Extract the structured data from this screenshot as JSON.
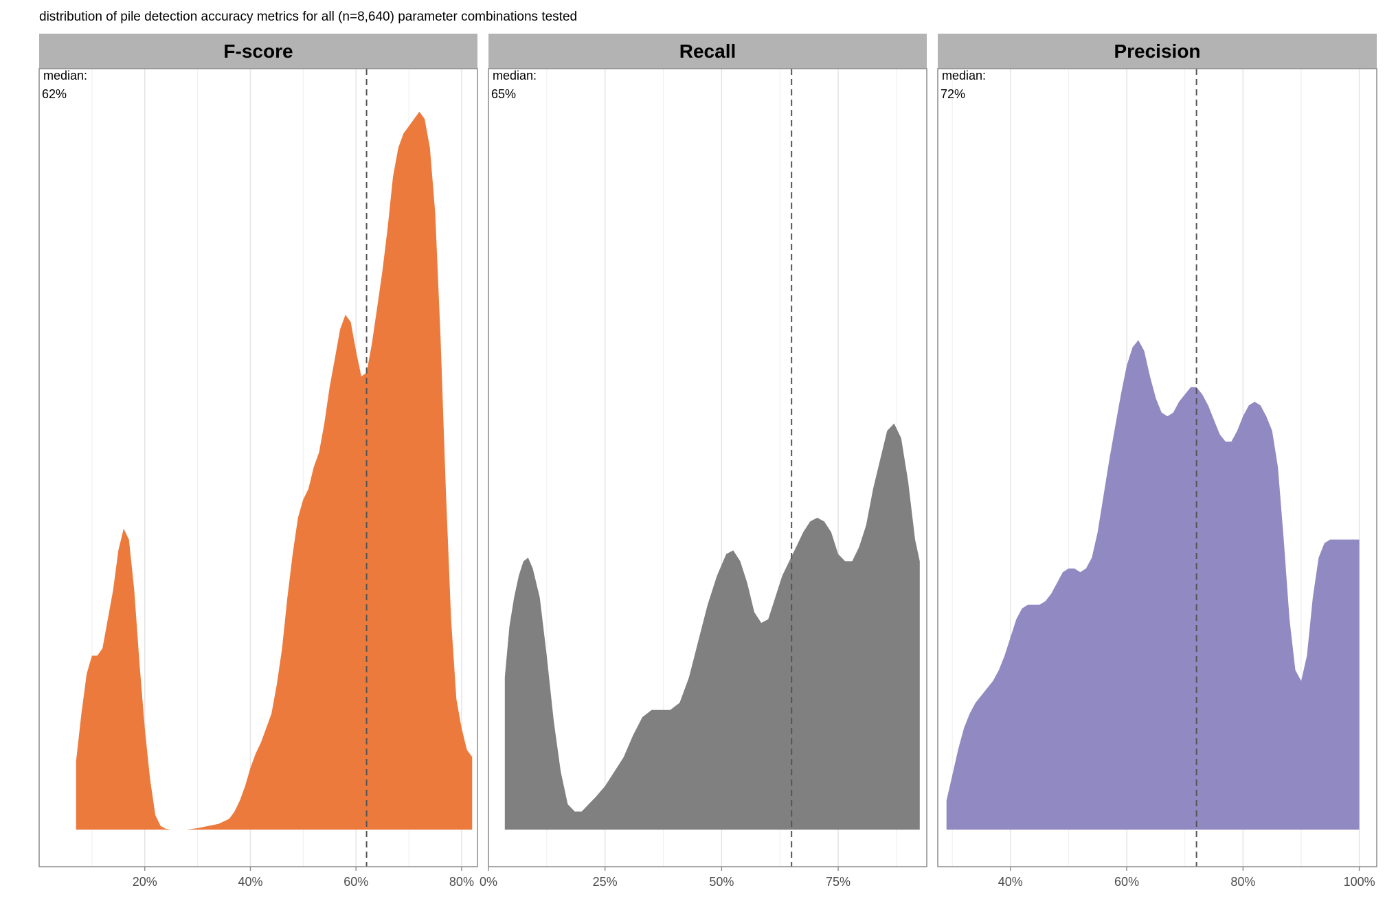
{
  "chart_data": {
    "type": "area",
    "title": "distribution of pile detection accuracy metrics for all (n=8,640) parameter combinations tested",
    "ylabel": "",
    "ylim": [
      0,
      1
    ],
    "grid": true,
    "facets": [
      {
        "name": "F-score",
        "color": "#ec7a3d",
        "xlim": [
          0.0,
          0.83
        ],
        "tick_values": [
          0.2,
          0.4,
          0.6,
          0.8
        ],
        "tick_labels": [
          "20%",
          "40%",
          "60%",
          "80%"
        ],
        "median": 0.62,
        "median_label": "median:",
        "median_value": "62%",
        "x": [
          0.07,
          0.08,
          0.09,
          0.1,
          0.11,
          0.12,
          0.13,
          0.14,
          0.15,
          0.16,
          0.17,
          0.18,
          0.19,
          0.2,
          0.21,
          0.22,
          0.23,
          0.24,
          0.25,
          0.26,
          0.28,
          0.3,
          0.32,
          0.34,
          0.36,
          0.37,
          0.38,
          0.39,
          0.4,
          0.41,
          0.42,
          0.43,
          0.44,
          0.45,
          0.46,
          0.47,
          0.48,
          0.49,
          0.5,
          0.51,
          0.52,
          0.53,
          0.54,
          0.55,
          0.56,
          0.57,
          0.58,
          0.59,
          0.6,
          0.61,
          0.62,
          0.63,
          0.64,
          0.65,
          0.66,
          0.67,
          0.68,
          0.69,
          0.7,
          0.71,
          0.72,
          0.73,
          0.74,
          0.75,
          0.76,
          0.77,
          0.78,
          0.79,
          0.8,
          0.81,
          0.82
        ],
        "y": [
          0.095,
          0.16,
          0.215,
          0.24,
          0.24,
          0.25,
          0.29,
          0.33,
          0.385,
          0.415,
          0.4,
          0.33,
          0.23,
          0.14,
          0.07,
          0.02,
          0.005,
          0.001,
          0.0,
          0.0,
          0.0,
          0.002,
          0.005,
          0.008,
          0.015,
          0.025,
          0.04,
          0.06,
          0.085,
          0.105,
          0.12,
          0.14,
          0.16,
          0.2,
          0.25,
          0.32,
          0.38,
          0.43,
          0.455,
          0.47,
          0.5,
          0.52,
          0.56,
          0.61,
          0.65,
          0.69,
          0.71,
          0.7,
          0.66,
          0.625,
          0.63,
          0.67,
          0.72,
          0.77,
          0.83,
          0.9,
          0.94,
          0.96,
          0.97,
          0.98,
          0.99,
          0.98,
          0.94,
          0.85,
          0.68,
          0.47,
          0.29,
          0.18,
          0.14,
          0.11,
          0.1
        ]
      },
      {
        "name": "Recall",
        "color": "#808080",
        "xlim": [
          0.0,
          0.94
        ],
        "tick_values": [
          0.0,
          0.25,
          0.5,
          0.75
        ],
        "tick_labels": [
          "0%",
          "25%",
          "50%",
          "75%"
        ],
        "median": 0.65,
        "median_label": "median:",
        "median_value": "65%",
        "x": [
          0.035,
          0.045,
          0.055,
          0.065,
          0.075,
          0.085,
          0.095,
          0.11,
          0.125,
          0.14,
          0.155,
          0.17,
          0.185,
          0.2,
          0.215,
          0.23,
          0.25,
          0.27,
          0.29,
          0.31,
          0.33,
          0.35,
          0.37,
          0.39,
          0.41,
          0.43,
          0.45,
          0.47,
          0.49,
          0.51,
          0.525,
          0.54,
          0.555,
          0.57,
          0.585,
          0.6,
          0.615,
          0.63,
          0.645,
          0.66,
          0.675,
          0.69,
          0.705,
          0.72,
          0.735,
          0.75,
          0.765,
          0.78,
          0.795,
          0.81,
          0.825,
          0.84,
          0.855,
          0.87,
          0.885,
          0.9,
          0.915,
          0.925
        ],
        "y": [
          0.21,
          0.28,
          0.32,
          0.35,
          0.37,
          0.375,
          0.36,
          0.32,
          0.24,
          0.15,
          0.08,
          0.035,
          0.025,
          0.025,
          0.035,
          0.045,
          0.06,
          0.08,
          0.1,
          0.13,
          0.155,
          0.165,
          0.165,
          0.165,
          0.175,
          0.21,
          0.26,
          0.31,
          0.35,
          0.38,
          0.385,
          0.37,
          0.34,
          0.3,
          0.285,
          0.29,
          0.32,
          0.35,
          0.37,
          0.39,
          0.41,
          0.425,
          0.43,
          0.425,
          0.41,
          0.38,
          0.37,
          0.37,
          0.39,
          0.42,
          0.47,
          0.51,
          0.55,
          0.56,
          0.54,
          0.48,
          0.4,
          0.37
        ]
      },
      {
        "name": "Precision",
        "color": "#9189c1",
        "xlim": [
          0.275,
          1.03
        ],
        "tick_values": [
          0.4,
          0.6,
          0.8,
          1.0
        ],
        "tick_labels": [
          "40%",
          "60%",
          "80%",
          "100%"
        ],
        "median": 0.72,
        "median_label": "median:",
        "median_value": "72%",
        "x": [
          0.29,
          0.3,
          0.31,
          0.32,
          0.33,
          0.34,
          0.35,
          0.36,
          0.37,
          0.38,
          0.39,
          0.4,
          0.41,
          0.42,
          0.43,
          0.44,
          0.45,
          0.46,
          0.47,
          0.48,
          0.49,
          0.5,
          0.51,
          0.52,
          0.53,
          0.54,
          0.55,
          0.56,
          0.57,
          0.58,
          0.59,
          0.6,
          0.61,
          0.62,
          0.63,
          0.64,
          0.65,
          0.66,
          0.67,
          0.68,
          0.69,
          0.7,
          0.71,
          0.72,
          0.73,
          0.74,
          0.75,
          0.76,
          0.77,
          0.78,
          0.79,
          0.8,
          0.81,
          0.82,
          0.83,
          0.84,
          0.85,
          0.86,
          0.87,
          0.88,
          0.89,
          0.9,
          0.91,
          0.92,
          0.93,
          0.94,
          0.95,
          0.96,
          0.97,
          0.98,
          0.99,
          1.0
        ],
        "y": [
          0.04,
          0.075,
          0.11,
          0.14,
          0.16,
          0.175,
          0.185,
          0.195,
          0.205,
          0.22,
          0.24,
          0.265,
          0.29,
          0.305,
          0.31,
          0.31,
          0.31,
          0.315,
          0.325,
          0.34,
          0.355,
          0.36,
          0.36,
          0.355,
          0.36,
          0.375,
          0.41,
          0.46,
          0.51,
          0.555,
          0.6,
          0.64,
          0.665,
          0.675,
          0.66,
          0.625,
          0.595,
          0.575,
          0.57,
          0.575,
          0.59,
          0.6,
          0.61,
          0.61,
          0.6,
          0.585,
          0.565,
          0.545,
          0.535,
          0.535,
          0.55,
          0.57,
          0.585,
          0.59,
          0.585,
          0.57,
          0.55,
          0.5,
          0.4,
          0.29,
          0.22,
          0.205,
          0.24,
          0.32,
          0.375,
          0.395,
          0.4,
          0.4,
          0.4,
          0.4,
          0.4,
          0.4
        ]
      }
    ]
  }
}
